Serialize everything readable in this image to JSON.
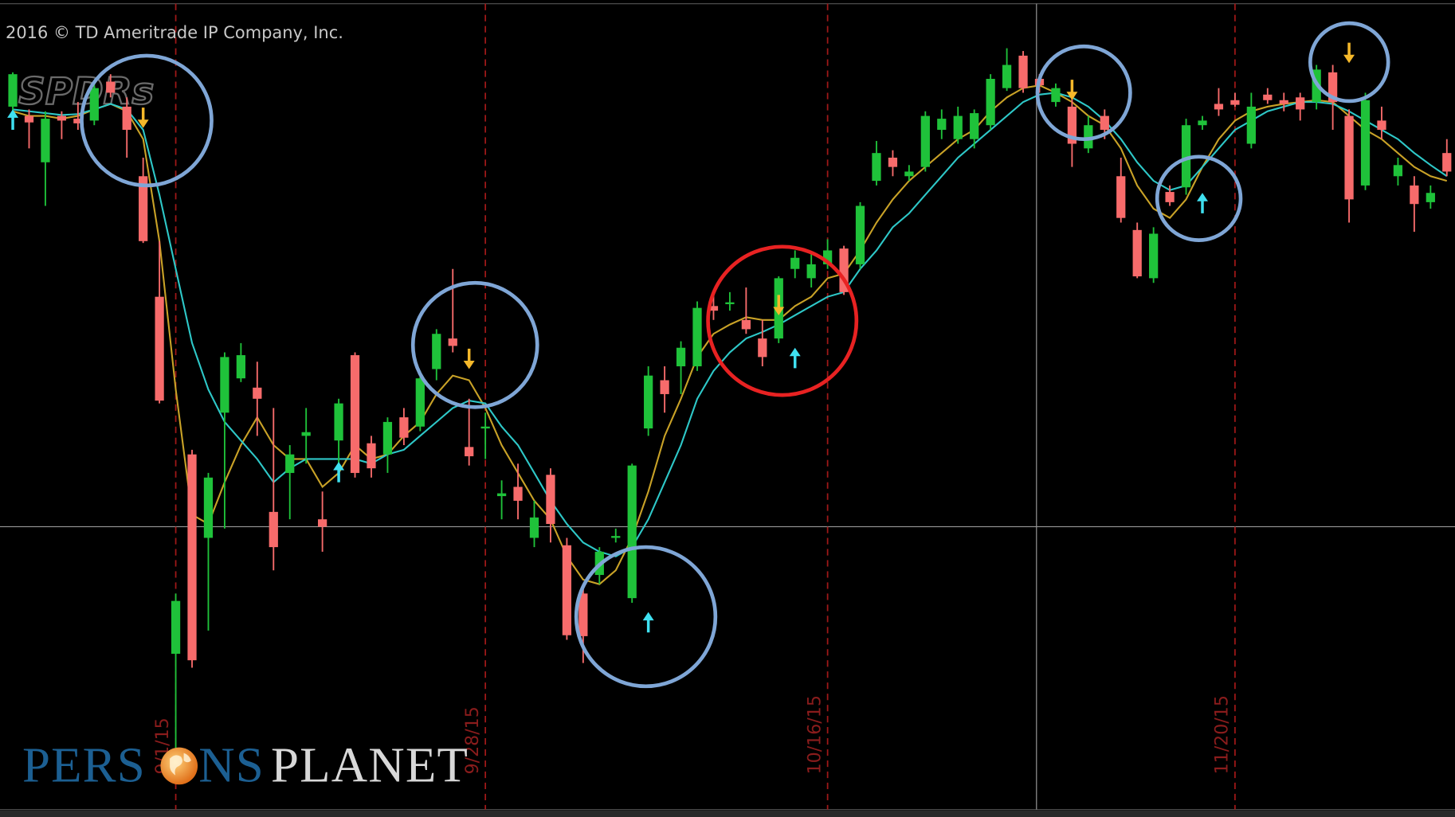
{
  "chart_data": {
    "type": "candlestick",
    "title": "2016 © TD Ameritrade IP Company, Inc.",
    "watermark": "SPDRs",
    "brand": [
      "PERS",
      "NS",
      "PLANET"
    ],
    "categories": [
      null,
      null,
      null,
      null,
      null,
      null,
      null,
      null,
      null,
      null,
      "9/1/15",
      null,
      null,
      null,
      null,
      null,
      null,
      null,
      null,
      null,
      null,
      null,
      null,
      null,
      null,
      null,
      null,
      null,
      null,
      "9/28/15",
      null,
      null,
      null,
      null,
      null,
      null,
      null,
      null,
      null,
      null,
      null,
      null,
      null,
      null,
      null,
      null,
      null,
      null,
      null,
      null,
      "10/16/15",
      null,
      null,
      null,
      null,
      null,
      null,
      null,
      null,
      null,
      null,
      null,
      null,
      null,
      null,
      null,
      null,
      null,
      null,
      null,
      null,
      null,
      null,
      null,
      null,
      "11/20/15",
      null,
      null,
      null,
      null,
      null,
      null,
      null,
      null,
      null,
      null,
      null,
      null,
      null
    ],
    "candles": {
      "up_color": "#1fc23a",
      "down_color": "#f76b6b",
      "open": [
        765,
        755,
        705,
        755,
        752,
        750,
        792,
        765,
        690,
        560,
        175,
        390,
        300,
        435,
        472,
        462,
        328,
        370,
        410,
        320,
        405,
        497,
        402,
        390,
        430,
        420,
        482,
        515,
        398,
        418,
        345,
        355,
        300,
        368,
        292,
        240,
        260,
        300,
        235,
        418,
        470,
        485,
        485,
        550,
        552,
        535,
        515,
        515,
        590,
        580,
        595,
        612,
        595,
        685,
        710,
        690,
        700,
        740,
        730,
        730,
        745,
        785,
        820,
        795,
        770,
        765,
        720,
        755,
        690,
        632,
        580,
        673,
        678,
        745,
        768,
        772,
        725,
        778,
        772,
        775,
        770,
        802,
        755,
        680,
        750,
        690,
        680,
        662,
        715
      ],
      "high": [
        802,
        762,
        760,
        760,
        770,
        792,
        800,
        775,
        710,
        620,
        240,
        395,
        370,
        500,
        510,
        490,
        440,
        400,
        440,
        350,
        450,
        500,
        410,
        430,
        440,
        480,
        525,
        590,
        450,
        435,
        362,
        380,
        340,
        375,
        300,
        245,
        290,
        310,
        380,
        485,
        485,
        512,
        555,
        565,
        565,
        570,
        535,
        582,
        610,
        608,
        622,
        615,
        662,
        728,
        718,
        702,
        760,
        762,
        765,
        762,
        800,
        828,
        825,
        800,
        790,
        780,
        755,
        762,
        710,
        640,
        635,
        680,
        752,
        755,
        785,
        780,
        780,
        785,
        780,
        780,
        810,
        810,
        762,
        780,
        765,
        710,
        690,
        680,
        730
      ],
      "low": [
        760,
        720,
        658,
        730,
        740,
        745,
        775,
        710,
        618,
        445,
        70,
        160,
        200,
        310,
        468,
        410,
        265,
        320,
        380,
        285,
        360,
        365,
        365,
        370,
        400,
        415,
        470,
        500,
        378,
        385,
        320,
        320,
        290,
        295,
        190,
        165,
        250,
        295,
        230,
        410,
        435,
        455,
        480,
        535,
        545,
        520,
        485,
        510,
        580,
        570,
        590,
        562,
        590,
        680,
        690,
        685,
        695,
        730,
        725,
        720,
        740,
        782,
        780,
        780,
        765,
        700,
        715,
        730,
        640,
        580,
        575,
        658,
        670,
        740,
        755,
        765,
        720,
        768,
        760,
        750,
        762,
        740,
        640,
        675,
        730,
        680,
        630,
        655,
        690
      ],
      "close": [
        800,
        748,
        752,
        750,
        747,
        785,
        780,
        740,
        620,
        448,
        232,
        168,
        365,
        495,
        497,
        450,
        290,
        390,
        414,
        312,
        445,
        370,
        375,
        425,
        408,
        472,
        520,
        507,
        388,
        420,
        348,
        340,
        322,
        315,
        195,
        194,
        285,
        302,
        378,
        475,
        455,
        505,
        548,
        545,
        554,
        525,
        495,
        580,
        602,
        595,
        610,
        565,
        658,
        715,
        700,
        695,
        755,
        752,
        755,
        758,
        795,
        810,
        785,
        788,
        785,
        725,
        745,
        740,
        645,
        582,
        628,
        662,
        745,
        750,
        762,
        767,
        765,
        772,
        768,
        762,
        805,
        770,
        665,
        772,
        740,
        702,
        660,
        672,
        695
      ]
    },
    "series": [
      {
        "color": "#c9a227",
        "values": [
          760,
          755,
          755,
          752,
          755,
          762,
          768,
          760,
          730,
          620,
          460,
          325,
          315,
          360,
          400,
          430,
          400,
          385,
          385,
          355,
          370,
          400,
          385,
          390,
          410,
          425,
          455,
          475,
          470,
          440,
          400,
          370,
          340,
          320,
          280,
          255,
          250,
          265,
          300,
          350,
          410,
          450,
          495,
          520,
          530,
          538,
          535,
          535,
          550,
          560,
          580,
          585,
          610,
          640,
          665,
          685,
          700,
          715,
          730,
          740,
          760,
          775,
          785,
          788,
          780,
          770,
          755,
          745,
          720,
          680,
          655,
          645,
          665,
          700,
          730,
          750,
          760,
          765,
          768,
          770,
          772,
          770,
          755,
          740,
          730,
          715,
          700,
          690,
          685
        ]
      },
      {
        "color": "#2ec8c8",
        "values": [
          762,
          760,
          758,
          756,
          757,
          762,
          768,
          762,
          740,
          670,
          590,
          510,
          460,
          425,
          405,
          385,
          360,
          375,
          385,
          385,
          385,
          385,
          380,
          390,
          395,
          410,
          425,
          440,
          448,
          445,
          420,
          400,
          370,
          340,
          315,
          295,
          285,
          280,
          290,
          320,
          360,
          400,
          450,
          480,
          500,
          515,
          522,
          530,
          540,
          550,
          560,
          565,
          590,
          610,
          635,
          650,
          670,
          690,
          710,
          725,
          740,
          755,
          770,
          778,
          780,
          775,
          765,
          750,
          730,
          705,
          685,
          675,
          680,
          700,
          720,
          740,
          750,
          760,
          765,
          770,
          770,
          768,
          760,
          750,
          740,
          730,
          715,
          702,
          690
        ]
      }
    ],
    "buy_signals": {
      "color": "#3fe0f0",
      "values": [
        762,
        null,
        null,
        null,
        null,
        null,
        null,
        null,
        null,
        null,
        null,
        null,
        null,
        null,
        null,
        null,
        null,
        null,
        null,
        null,
        382,
        null,
        null,
        null,
        null,
        null,
        null,
        null,
        null,
        null,
        null,
        null,
        null,
        null,
        null,
        null,
        null,
        null,
        null,
        220,
        null,
        null,
        null,
        null,
        null,
        null,
        null,
        null,
        505,
        null,
        null,
        null,
        null,
        null,
        null,
        null,
        null,
        null,
        null,
        null,
        null,
        null,
        null,
        null,
        null,
        null,
        null,
        null,
        null,
        null,
        null,
        null,
        null,
        672,
        null,
        null,
        null,
        null,
        null,
        null,
        null,
        null,
        null,
        null,
        null,
        null,
        null,
        null,
        null
      ]
    },
    "sell_signals": {
      "color": "#f5b82a",
      "values": [
        null,
        null,
        null,
        null,
        null,
        null,
        null,
        null,
        742,
        null,
        null,
        null,
        null,
        null,
        null,
        null,
        null,
        null,
        null,
        null,
        null,
        null,
        null,
        null,
        null,
        null,
        null,
        null,
        482,
        null,
        null,
        null,
        null,
        null,
        null,
        null,
        null,
        null,
        null,
        null,
        null,
        null,
        null,
        null,
        null,
        null,
        null,
        540,
        null,
        null,
        null,
        null,
        null,
        null,
        null,
        null,
        null,
        null,
        null,
        null,
        null,
        null,
        null,
        null,
        null,
        772,
        null,
        null,
        null,
        null,
        null,
        null,
        null,
        null,
        null,
        null,
        null,
        null,
        null,
        null,
        null,
        null,
        812,
        null,
        null,
        null,
        null,
        null,
        null
      ]
    },
    "ylim": [
      0,
      880
    ]
  }
}
